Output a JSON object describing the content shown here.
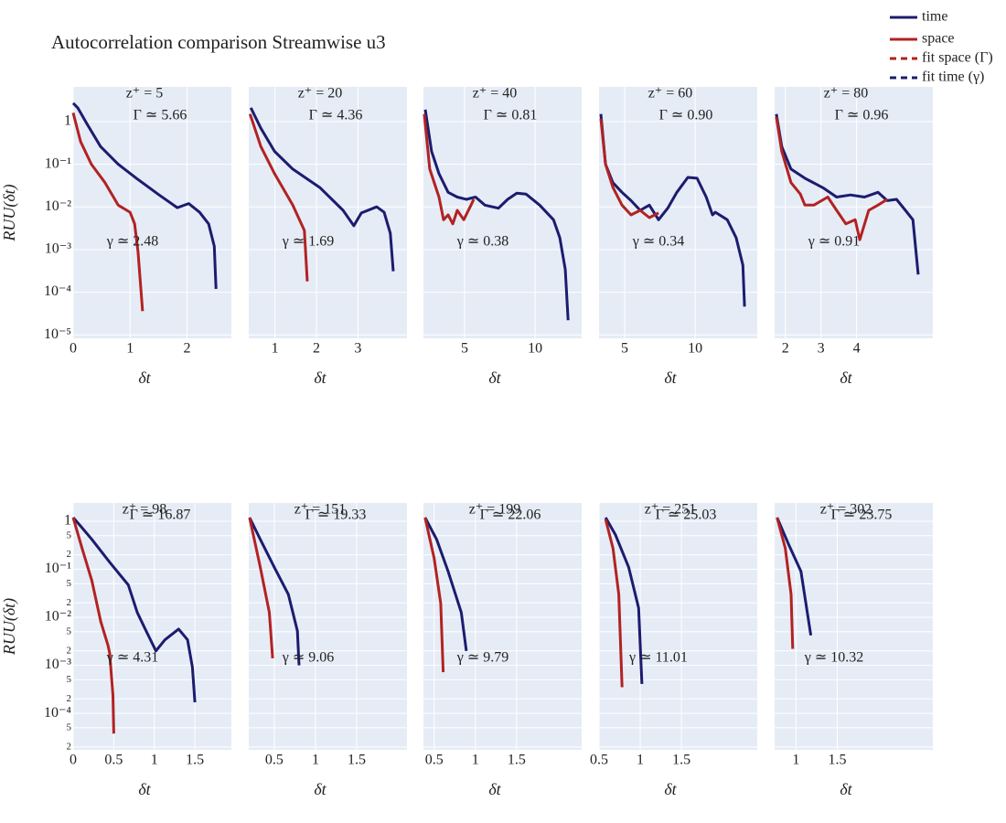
{
  "title": "Autocorrelation comparison Streamwise u3",
  "legend": [
    {
      "name": "time",
      "color": "#1c1c6e",
      "dash": "solid"
    },
    {
      "name": "space",
      "color": "#b22222",
      "dash": "solid"
    },
    {
      "name": "fit space (Γ)",
      "color": "#b22222",
      "dash": "dash"
    },
    {
      "name": "fit time (γ)",
      "color": "#1c1c6e",
      "dash": "dash"
    }
  ],
  "chart_data": [
    {
      "type": "line",
      "xlabel": "δt",
      "ylabel": "RUU(δt)",
      "log_y": true,
      "grid": true,
      "annotations": [
        "z⁺ = 5",
        "Γ ≃ 5.66",
        "γ ≃ 2.48"
      ],
      "xlim": [
        0,
        2.78
      ],
      "xticks": [
        0,
        1,
        2
      ],
      "ylim": [
        8.3e-06,
        6.5
      ],
      "yticks": [
        1,
        {
          "value": 0.1,
          "label": "10⁻¹"
        },
        {
          "value": 0.01,
          "label": "10⁻²"
        },
        {
          "value": 0.001,
          "label": "10⁻³"
        },
        {
          "value": 0.0001,
          "label": "10⁻⁴"
        },
        {
          "value": 1e-05,
          "label": "10⁻⁵"
        }
      ],
      "series": [
        {
          "color": "#1c1c6e",
          "x": [
            0,
            0.08,
            0.24,
            0.48,
            0.79,
            1.11,
            1.51,
            1.83,
            2.03,
            2.22,
            2.38,
            2.48,
            2.51
          ],
          "values": [
            2.7,
            2.1,
            0.9,
            0.26,
            0.1,
            0.047,
            0.019,
            0.0096,
            0.012,
            0.0075,
            0.004,
            0.0012,
            0.00012
          ]
        },
        {
          "color": "#b22222",
          "x": [
            0,
            0.13,
            0.32,
            0.56,
            0.79,
            1.0,
            1.08,
            1.14,
            1.22
          ],
          "values": [
            1.6,
            0.34,
            0.1,
            0.037,
            0.011,
            0.0075,
            0.004,
            0.0009,
            3.6e-05
          ]
        }
      ]
    },
    {
      "type": "line",
      "xlabel": "δt",
      "log_y": true,
      "grid": true,
      "annotations": [
        "z⁺ = 20",
        "Γ ≃ 4.36",
        "γ ≃ 1.69"
      ],
      "xlim": [
        0.37,
        4.18
      ],
      "xticks": [
        1,
        2,
        3
      ],
      "ylim": [
        8.3e-06,
        6.5
      ],
      "series": [
        {
          "color": "#1c1c6e",
          "x": [
            0.42,
            0.66,
            0.99,
            1.43,
            2.09,
            2.64,
            2.9,
            3.08,
            3.45,
            3.63,
            3.78,
            3.85
          ],
          "values": [
            2.1,
            0.7,
            0.2,
            0.077,
            0.028,
            0.0083,
            0.0036,
            0.0072,
            0.01,
            0.0075,
            0.0024,
            0.00031
          ]
        },
        {
          "color": "#b22222",
          "x": [
            0.4,
            0.66,
            0.99,
            1.43,
            1.71,
            1.78
          ],
          "values": [
            1.5,
            0.26,
            0.06,
            0.011,
            0.0028,
            0.00018
          ]
        }
      ]
    },
    {
      "type": "line",
      "xlabel": "δt",
      "log_y": true,
      "grid": true,
      "annotations": [
        "z⁺ = 40",
        "Γ ≃ 0.81",
        "γ ≃ 0.38"
      ],
      "xlim": [
        2.08,
        13.3
      ],
      "xticks": [
        5,
        10
      ],
      "ylim": [
        8.3e-06,
        6.5
      ],
      "series": [
        {
          "color": "#1c1c6e",
          "x": [
            2.21,
            2.66,
            3.18,
            3.83,
            4.48,
            5.13,
            5.78,
            6.43,
            7.4,
            8.05,
            8.7,
            9.35,
            10.32,
            11.3,
            11.75,
            12.14,
            12.34
          ],
          "values": [
            1.9,
            0.2,
            0.06,
            0.022,
            0.017,
            0.015,
            0.017,
            0.011,
            0.0093,
            0.015,
            0.021,
            0.02,
            0.011,
            0.005,
            0.0019,
            0.00034,
            2.2e-05
          ]
        },
        {
          "color": "#b22222",
          "x": [
            2.14,
            2.53,
            3.18,
            3.51,
            3.83,
            4.16,
            4.48,
            4.94,
            5.45,
            5.65
          ],
          "values": [
            1.5,
            0.077,
            0.017,
            0.005,
            0.0065,
            0.004,
            0.0083,
            0.005,
            0.011,
            0.015
          ]
        }
      ]
    },
    {
      "type": "line",
      "xlabel": "δt",
      "log_y": true,
      "grid": true,
      "annotations": [
        "z⁺ = 60",
        "Γ ≃ 0.90",
        "γ ≃ 0.34"
      ],
      "xlim": [
        3.18,
        14.4
      ],
      "xticks": [
        5,
        10
      ],
      "ylim": [
        8.3e-06,
        6.5
      ],
      "series": [
        {
          "color": "#1c1c6e",
          "x": [
            3.31,
            3.64,
            4.16,
            4.81,
            5.45,
            6.1,
            6.75,
            7.4,
            8.05,
            8.7,
            9.48,
            10.13,
            10.78,
            11.23,
            11.43,
            12.27,
            12.9,
            13.38,
            13.5
          ],
          "values": [
            1.5,
            0.1,
            0.037,
            0.022,
            0.014,
            0.0083,
            0.011,
            0.005,
            0.0093,
            0.022,
            0.049,
            0.047,
            0.017,
            0.0065,
            0.0075,
            0.005,
            0.0019,
            0.00043,
            4.6e-05
          ]
        },
        {
          "color": "#b22222",
          "x": [
            3.31,
            3.64,
            4.16,
            4.81,
            5.45,
            6.1,
            6.75,
            7.4
          ],
          "values": [
            1.16,
            0.1,
            0.029,
            0.011,
            0.0065,
            0.0083,
            0.0056,
            0.0072
          ]
        }
      ]
    },
    {
      "type": "line",
      "xlabel": "δt",
      "log_y": true,
      "grid": true,
      "annotations": [
        "z⁺ = 80",
        "Γ ≃ 0.96",
        "γ ≃ 0.91"
      ],
      "xlim": [
        1.7,
        6.14
      ],
      "xticks": [
        2,
        3,
        4
      ],
      "ylim": [
        8.3e-06,
        6.5
      ],
      "series": [
        {
          "color": "#1c1c6e",
          "x": [
            1.75,
            1.9,
            2.16,
            2.55,
            3.06,
            3.44,
            3.83,
            4.22,
            4.6,
            4.86,
            5.12,
            5.37,
            5.58,
            5.73
          ],
          "values": [
            1.5,
            0.26,
            0.077,
            0.047,
            0.028,
            0.017,
            0.019,
            0.017,
            0.022,
            0.014,
            0.015,
            0.0083,
            0.005,
            0.00026
          ]
        },
        {
          "color": "#b22222",
          "x": [
            1.75,
            1.9,
            2.16,
            2.42,
            2.55,
            2.8,
            3.19,
            3.44,
            3.7,
            3.96,
            4.09,
            4.34,
            4.6,
            4.86
          ],
          "values": [
            1.28,
            0.2,
            0.037,
            0.02,
            0.011,
            0.011,
            0.017,
            0.0083,
            0.004,
            0.005,
            0.0017,
            0.0083,
            0.011,
            0.015
          ]
        }
      ]
    },
    {
      "type": "line",
      "xlabel": "δt",
      "ylabel": "RUU(δt)",
      "log_y": true,
      "grid": true,
      "annotations": [
        "z⁺ = 98",
        "Γ ≃ 16.87",
        "γ ≃ 4.31"
      ],
      "xlim": [
        0,
        1.95
      ],
      "xticks": [
        0,
        0.5,
        1,
        1.5
      ],
      "ylim": [
        1.74e-05,
        2.4
      ],
      "yticks": [
        1,
        {
          "value": 0.5,
          "label": "5"
        },
        {
          "value": 0.2,
          "label": "2"
        },
        {
          "value": 0.1,
          "label": "10⁻¹"
        },
        {
          "value": 0.05,
          "label": "5"
        },
        {
          "value": 0.02,
          "label": "2"
        },
        {
          "value": 0.01,
          "label": "10⁻²"
        },
        {
          "value": 0.005,
          "label": "5"
        },
        {
          "value": 0.002,
          "label": "2"
        },
        {
          "value": 0.001,
          "label": "10⁻³"
        },
        {
          "value": 0.0005,
          "label": "5"
        },
        {
          "value": 0.0002,
          "label": "2"
        },
        {
          "value": 0.0001,
          "label": "10⁻⁴"
        },
        {
          "value": 5e-05,
          "label": "5"
        },
        {
          "value": 2e-05,
          "label": "2"
        }
      ],
      "series": [
        {
          "color": "#1c1c6e",
          "x": [
            0,
            0.09,
            0.23,
            0.45,
            0.68,
            0.79,
            0.9,
            1.02,
            1.13,
            1.3,
            1.41,
            1.47,
            1.5
          ],
          "values": [
            1.19,
            0.8,
            0.42,
            0.14,
            0.047,
            0.0126,
            0.0052,
            0.002,
            0.0034,
            0.0057,
            0.0034,
            0.00091,
            0.00017
          ]
        },
        {
          "color": "#b22222",
          "x": [
            0,
            0.11,
            0.23,
            0.34,
            0.43,
            0.45,
            0.49,
            0.5
          ],
          "values": [
            1.19,
            0.27,
            0.058,
            0.0081,
            0.0026,
            0.0018,
            0.00024,
            3.8e-05
          ]
        }
      ]
    },
    {
      "type": "line",
      "xlabel": "δt",
      "log_y": true,
      "grid": true,
      "annotations": [
        "z⁺ = 151",
        "Γ ≃ 19.33",
        "γ ≃ 9.06"
      ],
      "xlim": [
        0.19,
        2.11
      ],
      "xticks": [
        0.5,
        1,
        1.5
      ],
      "ylim": [
        1.74e-05,
        2.4
      ],
      "series": [
        {
          "color": "#1c1c6e",
          "x": [
            0.2,
            0.33,
            0.5,
            0.67,
            0.78,
            0.8
          ],
          "values": [
            1.19,
            0.42,
            0.11,
            0.03,
            0.0052,
            0.001
          ]
        },
        {
          "color": "#b22222",
          "x": [
            0.2,
            0.33,
            0.44,
            0.48
          ],
          "values": [
            1.19,
            0.11,
            0.0126,
            0.0014
          ]
        }
      ]
    },
    {
      "type": "line",
      "xlabel": "δt",
      "log_y": true,
      "grid": true,
      "annotations": [
        "z⁺ = 199",
        "Γ ≃ 22.06",
        "γ ≃ 9.79"
      ],
      "xlim": [
        0.37,
        2.29
      ],
      "xticks": [
        0.5,
        1,
        1.5
      ],
      "ylim": [
        1.74e-05,
        2.4
      ],
      "series": [
        {
          "color": "#1c1c6e",
          "x": [
            0.39,
            0.53,
            0.67,
            0.83,
            0.89
          ],
          "values": [
            1.19,
            0.42,
            0.09,
            0.0126,
            0.002
          ]
        },
        {
          "color": "#b22222",
          "x": [
            0.39,
            0.5,
            0.58,
            0.61
          ],
          "values": [
            1.19,
            0.17,
            0.0195,
            0.00072
          ]
        }
      ]
    },
    {
      "type": "line",
      "xlabel": "δt",
      "log_y": true,
      "grid": true,
      "annotations": [
        "z⁺ = 251",
        "Γ ≃ 25.03",
        "γ ≃ 11.01"
      ],
      "xlim": [
        0.5,
        2.42
      ],
      "xticks": [
        0.5,
        1,
        1.5
      ],
      "ylim": [
        1.74e-05,
        2.4
      ],
      "series": [
        {
          "color": "#1c1c6e",
          "x": [
            0.58,
            0.7,
            0.86,
            0.98,
            1.02
          ],
          "values": [
            1.19,
            0.52,
            0.11,
            0.0156,
            0.00041
          ]
        },
        {
          "color": "#b22222",
          "x": [
            0.58,
            0.67,
            0.74,
            0.78
          ],
          "values": [
            1.09,
            0.27,
            0.03,
            0.00035
          ]
        }
      ]
    },
    {
      "type": "line",
      "xlabel": "δt",
      "log_y": true,
      "grid": true,
      "annotations": [
        "z⁺ = 302",
        "Γ ≃ 23.75",
        "γ ≃ 10.32"
      ],
      "xlim": [
        0.74,
        2.66
      ],
      "xticks": [
        1,
        1.5
      ],
      "ylim": [
        1.74e-05,
        2.4
      ],
      "series": [
        {
          "color": "#1c1c6e",
          "x": [
            0.77,
            0.91,
            1.06,
            1.18
          ],
          "values": [
            1.19,
            0.33,
            0.09,
            0.0042
          ]
        },
        {
          "color": "#b22222",
          "x": [
            0.77,
            0.87,
            0.94,
            0.96
          ],
          "values": [
            1.19,
            0.27,
            0.03,
            0.0022
          ]
        }
      ]
    }
  ]
}
